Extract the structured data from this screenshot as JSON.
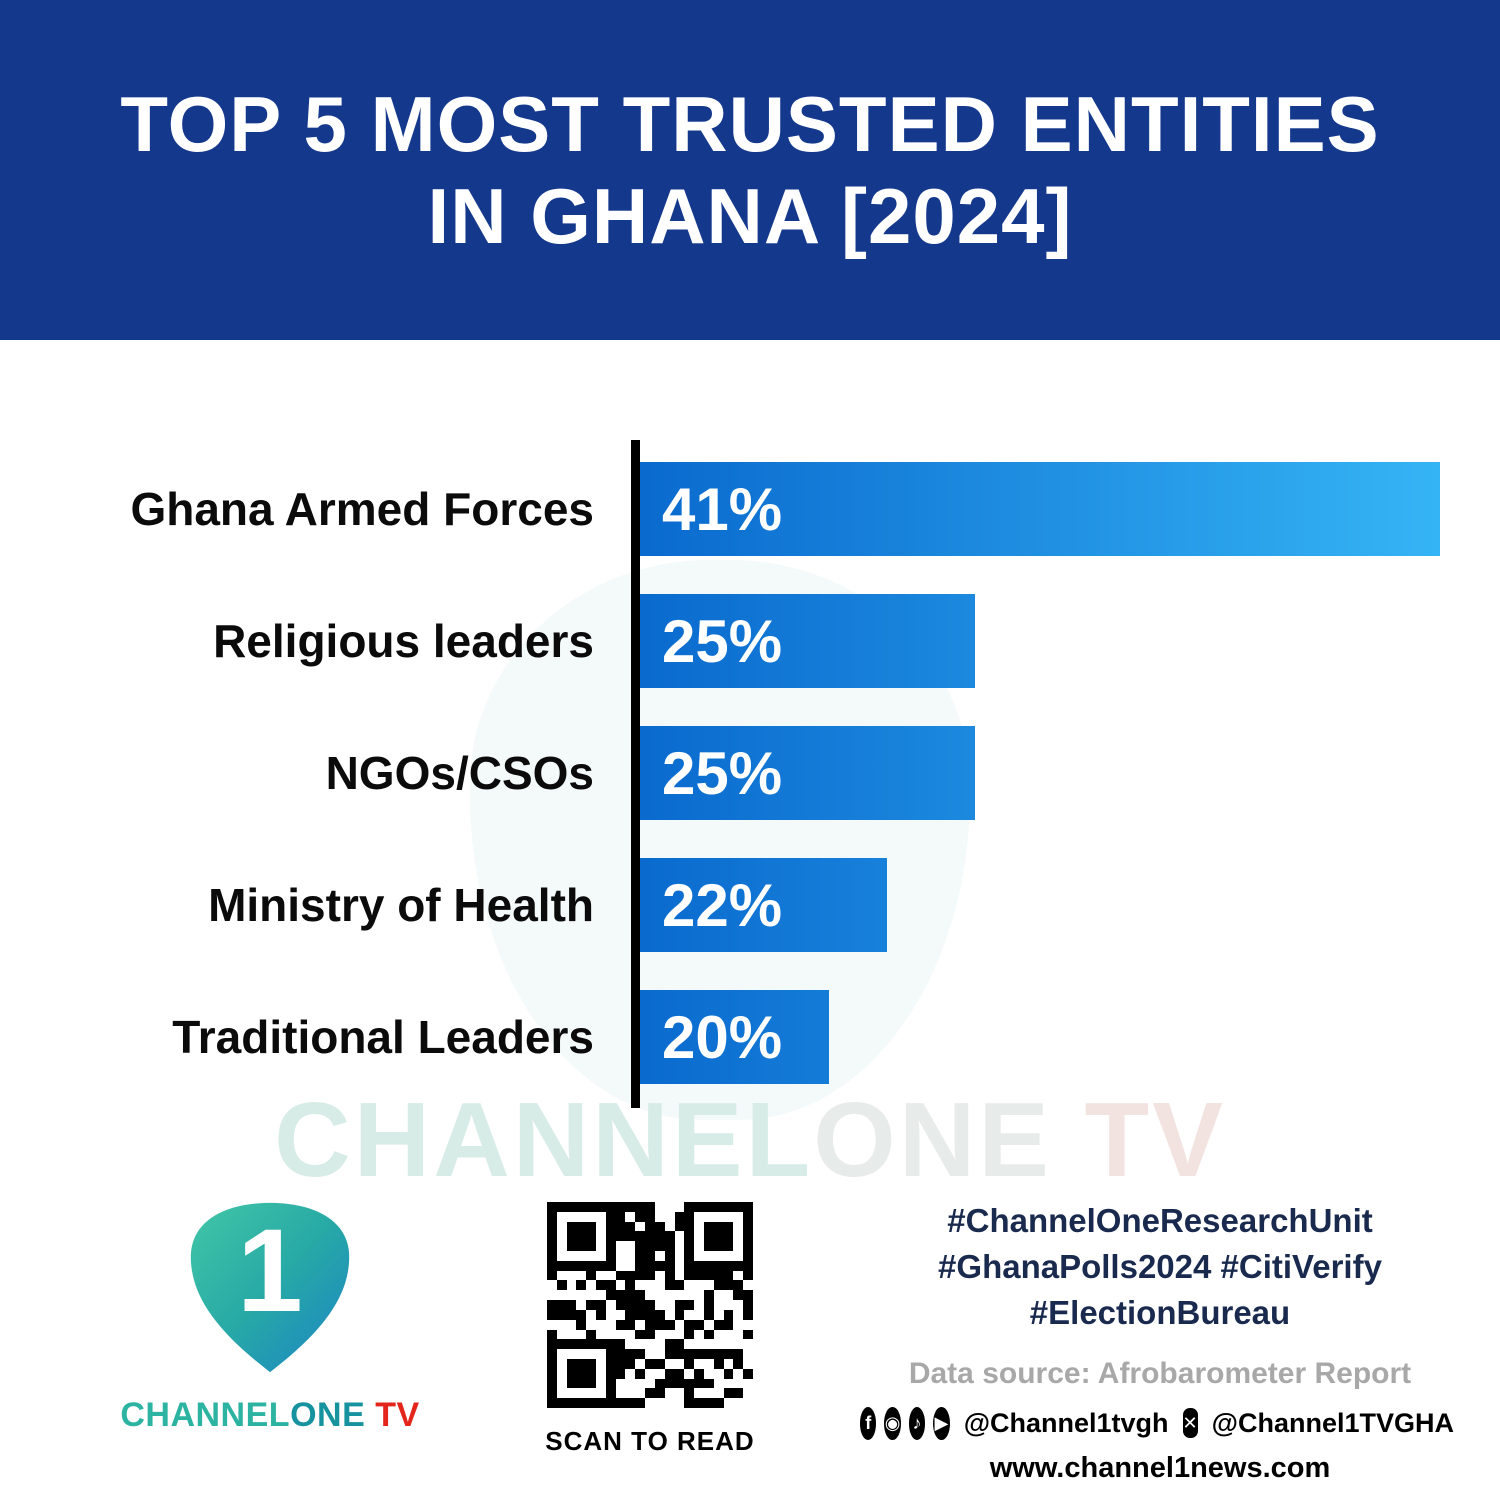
{
  "header": {
    "title_line1": "TOP 5 MOST TRUSTED ENTITIES",
    "title_line2": "IN GHANA [2024]"
  },
  "chart_data": {
    "type": "bar",
    "orientation": "horizontal",
    "title": "Top 5 Most Trusted Entities in Ghana [2024]",
    "categories": [
      "Ghana Armed Forces",
      "Religious leaders",
      "NGOs/CSOs",
      "Ministry of Health",
      "Traditional Leaders"
    ],
    "values": [
      41,
      25,
      25,
      22,
      20
    ],
    "value_labels": [
      "41%",
      "25%",
      "25%",
      "22%",
      "20%"
    ],
    "xlabel": "",
    "ylabel": "",
    "xlim": [
      0,
      41
    ],
    "grid": false,
    "legend": false,
    "bar_gradient": [
      "#0a6ace",
      "#35b4f5"
    ],
    "axis_color": "#000000"
  },
  "colors": {
    "header_bg": "#14388c",
    "bar_start": "#0a6ace",
    "bar_end": "#35b4f5",
    "hashtag_navy": "#1a2a4e",
    "logo_teal": "#2cb3a2",
    "logo_red": "#e4251b"
  },
  "watermark": {
    "part1": "CHANNEL",
    "part2": "ONE",
    "part3": " TV"
  },
  "footer": {
    "logo": {
      "mark_character": "1",
      "wordmark_channel": "CHANNEL",
      "wordmark_one": "ONE",
      "wordmark_tv": " TV"
    },
    "qr_caption": "SCAN TO READ",
    "hashtags_line1": "#ChannelOneResearchUnit",
    "hashtags_line2": "#GhanaPolls2024 #CitiVerify",
    "hashtags_line3": "#ElectionBureau",
    "data_source": "Data source: Afrobarometer Report",
    "social": {
      "icons": [
        {
          "name": "facebook-icon",
          "glyph": "f"
        },
        {
          "name": "instagram-icon",
          "glyph": "◉"
        },
        {
          "name": "tiktok-icon",
          "glyph": "♪"
        },
        {
          "name": "youtube-icon",
          "glyph": "▶"
        },
        {
          "name": "x-icon",
          "glyph": "✕"
        }
      ],
      "handle_meta": "@Channel1tvgh",
      "handle_x": "@Channel1TVGHA"
    },
    "website": "www.channel1news.com"
  }
}
